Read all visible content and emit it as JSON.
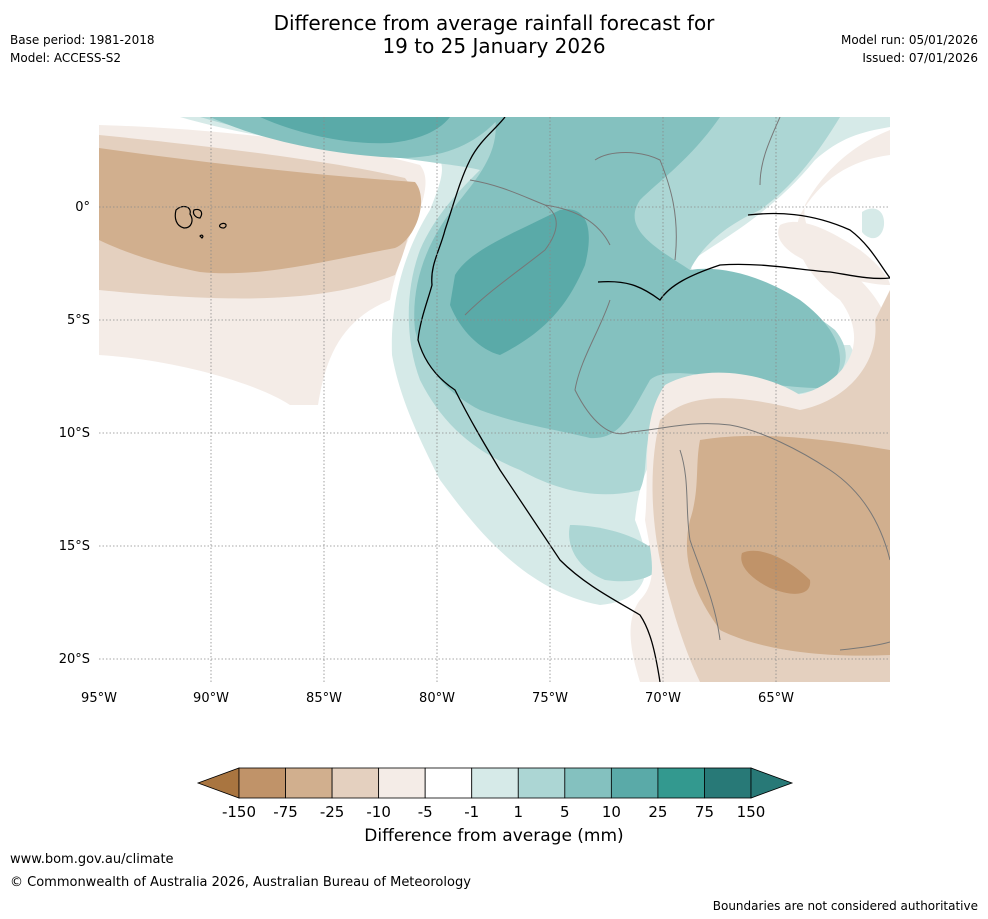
{
  "header": {
    "title_line1": "Difference from average rainfall forecast for",
    "title_line2": "19 to 25 January 2026",
    "base_period": "Base period: 1981-2018",
    "model": "Model: ACCESS-S2",
    "model_run": "Model run: 05/01/2026",
    "issued": "Issued: 07/01/2026"
  },
  "map": {
    "lat_ticks": [
      "0°",
      "5°S",
      "10°S",
      "15°S",
      "20°S"
    ],
    "lon_ticks": [
      "95°W",
      "90°W",
      "85°W",
      "80°W",
      "75°W",
      "70°W",
      "65°W"
    ]
  },
  "colorbar": {
    "title": "Difference from average (mm)",
    "labels": [
      "-150",
      "-75",
      "-25",
      "-10",
      "-5",
      "-1",
      "1",
      "5",
      "10",
      "25",
      "75",
      "150"
    ],
    "colors": [
      "#a97540",
      "#c09369",
      "#d1af8e",
      "#e4d0bf",
      "#f4ece7",
      "#ffffff",
      "#d6eae8",
      "#acd6d4",
      "#84c1bf",
      "#5aaaa8",
      "#33998f",
      "#287977"
    ]
  },
  "footer": {
    "url": "www.bom.gov.au/climate",
    "copyright": "© Commonwealth of Australia 2026, Australian Bureau of Meteorology",
    "disclaimer": "Boundaries are not considered authoritative"
  }
}
